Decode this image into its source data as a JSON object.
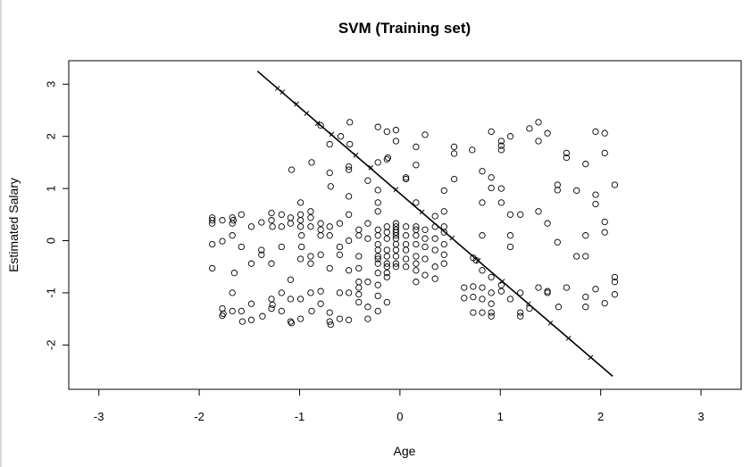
{
  "chart_data": {
    "type": "scatter",
    "title": "SVM (Training set)",
    "xlabel": "Age",
    "ylabel": "Estimated Salary",
    "xlim": [
      -3.3,
      3.4
    ],
    "ylim": [
      -2.85,
      3.45
    ],
    "xticks": [
      -3,
      -2,
      -1,
      0,
      1,
      2,
      3
    ],
    "yticks": [
      -2,
      -1,
      0,
      1,
      2,
      3
    ],
    "grid": false,
    "legend": "none",
    "boundary_line": {
      "x": [
        -1.42,
        2.12
      ],
      "y": [
        3.25,
        -2.6
      ]
    },
    "boundary_markers": [
      [
        -1.22,
        2.92
      ],
      [
        -1.17,
        2.85
      ],
      [
        -1.03,
        2.62
      ],
      [
        -0.93,
        2.44
      ],
      [
        -0.82,
        2.25
      ],
      [
        -0.68,
        2.04
      ],
      [
        -0.44,
        1.64
      ],
      [
        -0.29,
        1.4
      ],
      [
        -0.04,
        0.98
      ],
      [
        0.22,
        0.55
      ],
      [
        0.52,
        0.05
      ],
      [
        0.78,
        -0.38
      ],
      [
        1.02,
        -0.78
      ],
      [
        1.28,
        -1.21
      ],
      [
        1.5,
        -1.58
      ],
      [
        1.68,
        -1.87
      ],
      [
        1.9,
        -2.24
      ]
    ],
    "points": [
      [
        -1.87,
        0.44
      ],
      [
        -1.87,
        0.33
      ],
      [
        -1.87,
        -0.07
      ],
      [
        -1.87,
        -0.53
      ],
      [
        -1.77,
        0.39
      ],
      [
        -1.77,
        -0.01
      ],
      [
        -1.77,
        -1.3
      ],
      [
        -1.77,
        -1.44
      ],
      [
        -1.76,
        -1.4
      ],
      [
        -1.67,
        0.44
      ],
      [
        -1.67,
        0.33
      ],
      [
        -1.67,
        0.1
      ],
      [
        -1.67,
        -1.0
      ],
      [
        -1.67,
        -1.35
      ],
      [
        -1.66,
        0.39
      ],
      [
        -1.65,
        -0.62
      ],
      [
        -1.58,
        0.5
      ],
      [
        -1.58,
        -0.12
      ],
      [
        -1.57,
        -1.55
      ],
      [
        -1.48,
        0.27
      ],
      [
        -1.48,
        -0.44
      ],
      [
        -1.48,
        -1.21
      ],
      [
        -1.48,
        -1.52
      ],
      [
        -1.38,
        0.35
      ],
      [
        -1.38,
        -0.18
      ],
      [
        -1.38,
        -0.27
      ],
      [
        -1.37,
        -1.45
      ],
      [
        -1.28,
        0.53
      ],
      [
        -1.28,
        0.39
      ],
      [
        -1.28,
        -0.44
      ],
      [
        -1.28,
        -1.12
      ],
      [
        -1.28,
        -1.3
      ],
      [
        -1.27,
        -1.23
      ],
      [
        -1.18,
        0.5
      ],
      [
        -1.18,
        0.27
      ],
      [
        -1.18,
        -0.12
      ],
      [
        -1.18,
        -1.0
      ],
      [
        -1.18,
        -1.35
      ],
      [
        -1.09,
        0.44
      ],
      [
        -1.09,
        0.33
      ],
      [
        -1.09,
        -0.75
      ],
      [
        -1.09,
        -1.12
      ],
      [
        -1.09,
        -1.55
      ],
      [
        -1.08,
        1.36
      ],
      [
        -1.08,
        -1.58
      ],
      [
        -0.99,
        0.73
      ],
      [
        -0.99,
        0.5
      ],
      [
        -0.99,
        0.39
      ],
      [
        -0.99,
        0.27
      ],
      [
        -0.99,
        -0.35
      ],
      [
        -0.99,
        -1.12
      ],
      [
        -0.99,
        -1.5
      ],
      [
        -0.98,
        -0.12
      ],
      [
        -0.89,
        0.56
      ],
      [
        -0.89,
        0.44
      ],
      [
        -0.89,
        0.27
      ],
      [
        -0.89,
        -0.3
      ],
      [
        -0.89,
        -0.44
      ],
      [
        -0.89,
        -1.0
      ],
      [
        -0.88,
        1.5
      ],
      [
        -0.88,
        -1.35
      ],
      [
        -0.79,
        0.33
      ],
      [
        -0.79,
        0.21
      ],
      [
        -0.79,
        0.1
      ],
      [
        -0.79,
        -0.27
      ],
      [
        -0.79,
        -0.97
      ],
      [
        -0.79,
        -1.21
      ],
      [
        -0.79,
        2.21
      ],
      [
        -0.7,
        1.85
      ],
      [
        -0.7,
        1.3
      ],
      [
        -0.7,
        0.27
      ],
      [
        -0.7,
        0.1
      ],
      [
        -0.7,
        -0.53
      ],
      [
        -0.7,
        -1.38
      ],
      [
        -0.7,
        -1.55
      ],
      [
        -0.69,
        1.04
      ],
      [
        -0.69,
        -1.61
      ],
      [
        -0.6,
        0.33
      ],
      [
        -0.6,
        -0.12
      ],
      [
        -0.6,
        -0.27
      ],
      [
        -0.6,
        -1.5
      ],
      [
        -0.59,
        2.0
      ],
      [
        -0.51,
        1.42
      ],
      [
        -0.51,
        1.36
      ],
      [
        -0.51,
        0.85
      ],
      [
        -0.51,
        0.5
      ],
      [
        -0.51,
        0.0
      ],
      [
        -0.51,
        -0.57
      ],
      [
        -0.51,
        -1.0
      ],
      [
        -0.51,
        -1.52
      ],
      [
        -0.5,
        2.27
      ],
      [
        -0.5,
        1.85
      ],
      [
        -0.41,
        0.1
      ],
      [
        -0.41,
        -0.3
      ],
      [
        -0.41,
        -0.53
      ],
      [
        -0.41,
        -0.79
      ],
      [
        -0.41,
        -0.9
      ],
      [
        -0.41,
        -1.03
      ],
      [
        -0.41,
        -1.18
      ],
      [
        -0.32,
        1.15
      ],
      [
        -0.32,
        0.33
      ],
      [
        -0.32,
        0.04
      ],
      [
        -0.32,
        -0.79
      ],
      [
        -0.32,
        -1.27
      ],
      [
        -0.32,
        -1.5
      ],
      [
        -0.22,
        2.18
      ],
      [
        -0.22,
        1.5
      ],
      [
        -0.22,
        0.73
      ],
      [
        -0.22,
        0.56
      ],
      [
        -0.22,
        0.21
      ],
      [
        -0.22,
        0.1
      ],
      [
        -0.22,
        -0.07
      ],
      [
        -0.22,
        -0.18
      ],
      [
        -0.22,
        -0.3
      ],
      [
        -0.22,
        -0.35
      ],
      [
        -0.22,
        -0.44
      ],
      [
        -0.22,
        -0.62
      ],
      [
        -0.22,
        -0.85
      ],
      [
        -0.22,
        -1.06
      ],
      [
        -0.22,
        -1.35
      ],
      [
        -0.13,
        2.09
      ],
      [
        -0.13,
        1.56
      ],
      [
        -0.13,
        0.27
      ],
      [
        -0.13,
        0.16
      ],
      [
        -0.13,
        0.04
      ],
      [
        -0.13,
        -0.18
      ],
      [
        -0.13,
        -0.3
      ],
      [
        -0.13,
        -0.44
      ],
      [
        -0.13,
        -0.5
      ],
      [
        -0.13,
        -0.62
      ],
      [
        -0.13,
        -0.7
      ],
      [
        -0.13,
        -1.18
      ],
      [
        -0.12,
        1.59
      ],
      [
        -0.04,
        2.12
      ],
      [
        -0.04,
        1.91
      ],
      [
        -0.04,
        0.33
      ],
      [
        -0.04,
        0.27
      ],
      [
        -0.04,
        0.21
      ],
      [
        -0.04,
        0.16
      ],
      [
        -0.04,
        0.1
      ],
      [
        -0.04,
        0.04
      ],
      [
        -0.04,
        -0.07
      ],
      [
        -0.04,
        -0.18
      ],
      [
        -0.04,
        -0.3
      ],
      [
        -0.04,
        -0.44
      ],
      [
        -0.04,
        -0.5
      ],
      [
        0.06,
        1.21
      ],
      [
        0.06,
        1.18
      ],
      [
        0.06,
        0.27
      ],
      [
        0.06,
        0.1
      ],
      [
        0.06,
        -0.07
      ],
      [
        0.06,
        -0.18
      ],
      [
        0.06,
        -0.35
      ],
      [
        0.06,
        -0.5
      ],
      [
        0.16,
        1.8
      ],
      [
        0.16,
        1.45
      ],
      [
        0.16,
        0.73
      ],
      [
        0.16,
        0.27
      ],
      [
        0.16,
        0.21
      ],
      [
        0.16,
        0.1
      ],
      [
        0.16,
        -0.07
      ],
      [
        0.16,
        -0.3
      ],
      [
        0.16,
        -0.57
      ],
      [
        0.16,
        -0.79
      ],
      [
        0.25,
        2.03
      ],
      [
        0.25,
        0.21
      ],
      [
        0.25,
        0.04
      ],
      [
        0.25,
        -0.12
      ],
      [
        0.25,
        -0.35
      ],
      [
        0.25,
        -0.66
      ],
      [
        0.35,
        0.47
      ],
      [
        0.35,
        0.27
      ],
      [
        0.35,
        0.04
      ],
      [
        0.35,
        -0.18
      ],
      [
        0.35,
        -0.5
      ],
      [
        0.35,
        -0.73
      ],
      [
        0.44,
        0.27
      ],
      [
        0.44,
        0.16
      ],
      [
        0.44,
        -0.07
      ],
      [
        0.44,
        -0.27
      ],
      [
        0.44,
        -0.44
      ],
      [
        0.44,
        0.96
      ],
      [
        0.54,
        1.8
      ],
      [
        0.54,
        1.67
      ],
      [
        0.54,
        1.18
      ],
      [
        0.64,
        -0.9
      ],
      [
        0.72,
        1.74
      ],
      [
        0.73,
        -0.88
      ],
      [
        0.73,
        -1.08
      ],
      [
        0.73,
        -1.38
      ],
      [
        0.76,
        -0.38
      ],
      [
        0.82,
        0.1
      ],
      [
        0.82,
        -0.57
      ],
      [
        0.82,
        -0.9
      ],
      [
        0.82,
        -1.12
      ],
      [
        0.82,
        -1.38
      ],
      [
        0.82,
        1.33
      ],
      [
        0.82,
        0.73
      ],
      [
        0.91,
        2.09
      ],
      [
        0.91,
        1.21
      ],
      [
        0.91,
        1.01
      ],
      [
        0.91,
        -0.7
      ],
      [
        0.91,
        -1.0
      ],
      [
        0.91,
        -1.21
      ],
      [
        0.91,
        -1.38
      ],
      [
        0.91,
        -1.45
      ],
      [
        1.01,
        1.91
      ],
      [
        1.01,
        1.82
      ],
      [
        1.01,
        1.74
      ],
      [
        1.01,
        0.73
      ],
      [
        1.01,
        -0.85
      ],
      [
        1.01,
        -0.97
      ],
      [
        1.1,
        2.0
      ],
      [
        1.1,
        0.5
      ],
      [
        1.1,
        0.1
      ],
      [
        1.1,
        -0.12
      ],
      [
        1.1,
        -1.12
      ],
      [
        1.2,
        0.5
      ],
      [
        1.2,
        -1.0
      ],
      [
        1.2,
        -1.45
      ],
      [
        1.2,
        -1.38
      ],
      [
        1.29,
        2.15
      ],
      [
        1.29,
        -1.3
      ],
      [
        1.38,
        2.27
      ],
      [
        1.38,
        1.91
      ],
      [
        1.38,
        0.56
      ],
      [
        1.38,
        -0.9
      ],
      [
        1.47,
        2.06
      ],
      [
        1.47,
        0.33
      ],
      [
        1.47,
        -0.97
      ],
      [
        1.57,
        1.07
      ],
      [
        1.57,
        0.97
      ],
      [
        1.57,
        -0.03
      ],
      [
        1.58,
        -1.27
      ],
      [
        1.66,
        1.68
      ],
      [
        1.66,
        1.59
      ],
      [
        1.66,
        -0.9
      ],
      [
        1.76,
        0.96
      ],
      [
        1.76,
        -0.3
      ],
      [
        1.85,
        1.47
      ],
      [
        1.85,
        -0.3
      ],
      [
        1.85,
        0.1
      ],
      [
        1.85,
        -1.08
      ],
      [
        1.85,
        -1.27
      ],
      [
        1.95,
        2.09
      ],
      [
        1.95,
        0.88
      ],
      [
        1.95,
        0.7
      ],
      [
        1.95,
        -0.93
      ],
      [
        2.04,
        2.06
      ],
      [
        2.04,
        1.68
      ],
      [
        2.04,
        0.36
      ],
      [
        2.04,
        0.16
      ],
      [
        2.04,
        -1.2
      ],
      [
        2.14,
        1.07
      ],
      [
        2.14,
        -0.7
      ],
      [
        2.14,
        -0.79
      ],
      [
        2.14,
        -1.03
      ],
      [
        -1.87,
        0.39
      ],
      [
        -1.58,
        -1.35
      ],
      [
        -1.27,
        0.27
      ],
      [
        -0.98,
        0.1
      ],
      [
        -0.6,
        -1.0
      ],
      [
        -0.41,
        0.21
      ],
      [
        -0.22,
        0.97
      ],
      [
        0.16,
        -0.44
      ],
      [
        0.44,
        0.56
      ],
      [
        0.73,
        -0.33
      ],
      [
        1.01,
        1.0
      ],
      [
        1.47,
        -1.0
      ],
      [
        0.64,
        -1.1
      ]
    ]
  }
}
